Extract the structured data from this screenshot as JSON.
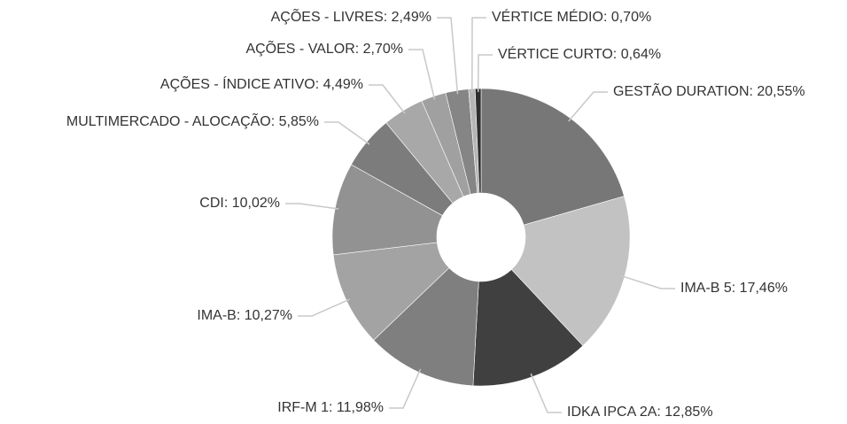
{
  "chart_data": {
    "type": "donut",
    "values": [
      20.55,
      17.46,
      12.85,
      11.98,
      10.27,
      10.02,
      5.85,
      4.49,
      2.7,
      2.49,
      0.7,
      0.64
    ],
    "value_labels": [
      "GESTÃO DURATION: 20,55%",
      "IMA-B 5: 17,46%",
      "IDKA IPCA 2A: 12,85%",
      "IRF-M 1: 11,98%",
      "IMA-B: 10,27%",
      "CDI: 10,02%",
      "MULTIMERCADO - ALOCAÇÃO: 5,85%",
      "AÇÕES - ÍNDICE ATIVO: 4,49%",
      "AÇÕES - VALOR: 2,70%",
      "AÇÕES - LIVRES: 2,49%",
      "VÉRTICE MÉDIO: 0,70%",
      "VÉRTICE CURTO: 0,64%"
    ],
    "colors": [
      "#777777",
      "#c2c2c2",
      "#404040",
      "#7f7f7f",
      "#a3a3a3",
      "#929292",
      "#7c7c7c",
      "#a8a8a8",
      "#a0a0a0",
      "#858585",
      "#b5b5b5",
      "#2e2e2e"
    ]
  }
}
